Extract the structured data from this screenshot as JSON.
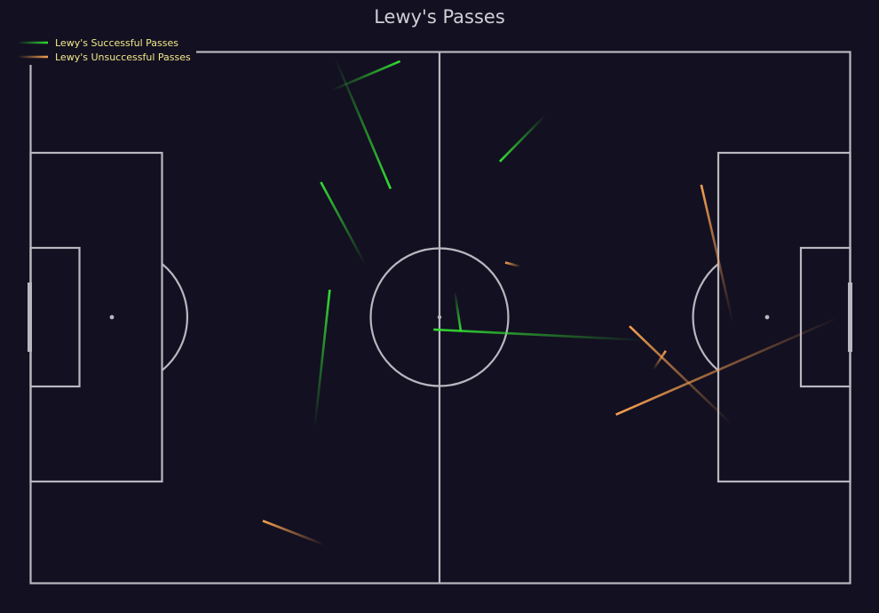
{
  "chart_data": {
    "type": "line",
    "title": "Lewy's Passes",
    "pitch": {
      "length": 120,
      "width": 80,
      "line_color": "#b8b8c0",
      "background": "#131021"
    },
    "legend": {
      "placement": "top-left",
      "entries": [
        {
          "label": "Lewy's Successful Passes",
          "color": "#33dd33"
        },
        {
          "label": "Lewy's Unsuccessful Passes",
          "color": "#f5a050"
        }
      ]
    },
    "series": [
      {
        "name": "Lewy's Successful Passes",
        "color": "#33dd33",
        "passes": [
          {
            "start": [
              44.6,
              1.0
            ],
            "end": [
              52.7,
              20.6
            ]
          },
          {
            "start": [
              44.0,
              5.8
            ],
            "end": [
              54.1,
              1.4
            ]
          },
          {
            "start": [
              75.3,
              9.6
            ],
            "end": [
              68.7,
              16.5
            ]
          },
          {
            "start": [
              49.0,
              32.0
            ],
            "end": [
              42.5,
              19.6
            ]
          },
          {
            "start": [
              62.1,
              36.0
            ],
            "end": [
              63.0,
              42.1
            ]
          },
          {
            "start": [
              90.0,
              43.4
            ],
            "end": [
              59.0,
              41.8
            ]
          },
          {
            "start": [
              41.6,
              56.6
            ],
            "end": [
              43.8,
              35.8
            ]
          }
        ]
      },
      {
        "name": "Lewy's Unsuccessful Passes",
        "color": "#f5a050",
        "passes": [
          {
            "start": [
              102.8,
              40.7
            ],
            "end": [
              98.2,
              20.0
            ]
          },
          {
            "start": [
              71.7,
              32.3
            ],
            "end": [
              69.5,
              31.7
            ]
          },
          {
            "start": [
              102.6,
              56.0
            ],
            "end": [
              87.7,
              41.3
            ]
          },
          {
            "start": [
              91.2,
              47.8
            ],
            "end": [
              93.0,
              45.0
            ]
          },
          {
            "start": [
              118.3,
              40.0
            ],
            "end": [
              85.7,
              54.6
            ]
          },
          {
            "start": [
              43.0,
              74.2
            ],
            "end": [
              34.0,
              70.6
            ]
          }
        ]
      }
    ]
  }
}
